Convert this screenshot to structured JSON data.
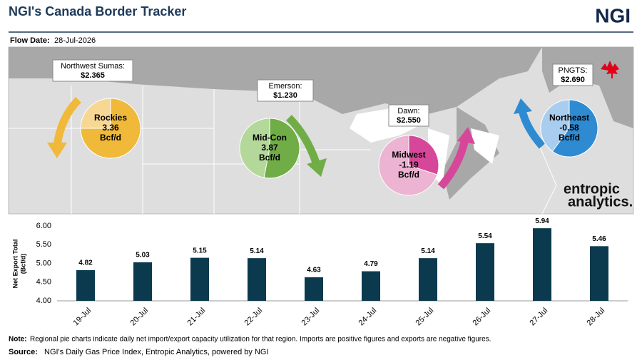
{
  "header": {
    "title": "NGI's Canada Border Tracker",
    "logo": "NGI"
  },
  "flow_date": {
    "label": "Flow Date:",
    "value": "28-Jul-2026"
  },
  "map": {
    "prices": [
      {
        "name": "Northwest Sumas:",
        "price": "$2.365"
      },
      {
        "name": "Emerson:",
        "price": "$1.230"
      },
      {
        "name": "Dawn:",
        "price": "$2.550"
      },
      {
        "name": "PNGTS:",
        "price": "$2.690"
      }
    ],
    "regions": [
      {
        "name": "Rockies",
        "value": 3.36,
        "unit": "Bcf/d",
        "utilization": 75
      },
      {
        "name": "Mid-Con",
        "value": 3.87,
        "unit": "Bcf/d",
        "utilization": 53
      },
      {
        "name": "Midwest",
        "value": -1.19,
        "unit": "Bcf/d",
        "utilization": 30
      },
      {
        "name": "Northeast",
        "value": -0.58,
        "unit": "Bcf/d",
        "utilization": 60
      }
    ],
    "partner_logo": [
      "entropic",
      "analytics."
    ]
  },
  "chart_data": {
    "type": "bar",
    "ylabel": [
      "Net Export Total",
      "(Bcf/d)"
    ],
    "categories": [
      "19-Jul",
      "20-Jul",
      "21-Jul",
      "22-Jul",
      "23-Jul",
      "24-Jul",
      "25-Jul",
      "26-Jul",
      "27-Jul",
      "28-Jul"
    ],
    "values": [
      4.82,
      5.03,
      5.15,
      5.14,
      4.63,
      4.79,
      5.14,
      5.54,
      5.94,
      5.46
    ],
    "color": "#0b3a4f",
    "ylim": [
      4,
      6
    ],
    "yticks": [
      {
        "value": 4,
        "label": "4.00"
      },
      {
        "value": 4.5,
        "label": "4.50"
      },
      {
        "value": 5,
        "label": "5.00"
      },
      {
        "value": 5.5,
        "label": "5.50"
      },
      {
        "value": 6,
        "label": "6.00"
      }
    ],
    "grid": false
  },
  "footer": {
    "note_label": "Note:",
    "note": "Regional pie charts indicate daily net import/export capacity utilization for that region. Imports are positive figures and exports are negative figures.",
    "source_label": "Source:",
    "source": "NGI's Daily Gas Price Index, Entropic Analytics, powered by NGI"
  }
}
